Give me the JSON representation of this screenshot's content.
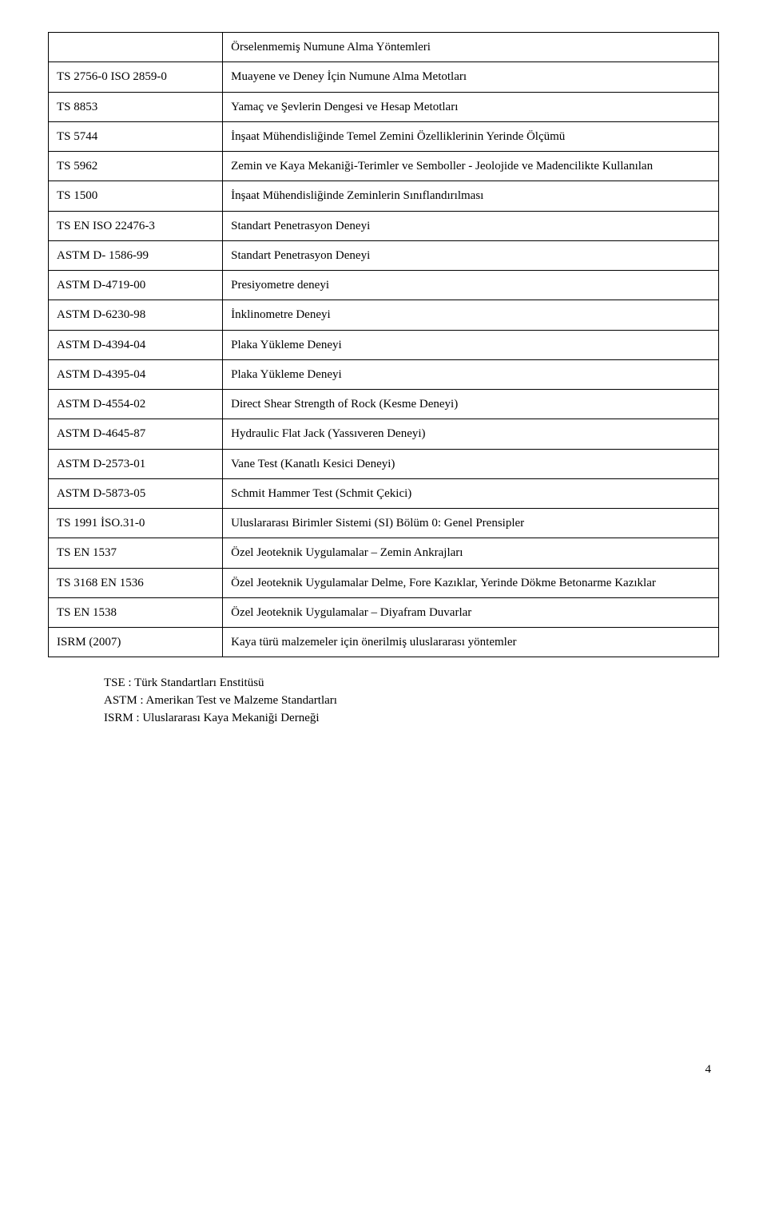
{
  "table": {
    "header": "Örselenmemiş Numune Alma Yöntemleri",
    "rows": [
      {
        "code": "TS 2756-0 ISO 2859-0",
        "desc": "Muayene ve Deney İçin Numune Alma Metotları"
      },
      {
        "code": "TS 8853",
        "desc": "Yamaç ve Şevlerin Dengesi ve Hesap Metotları"
      },
      {
        "code": "TS 5744",
        "desc": "İnşaat Mühendisliğinde Temel Zemini Özelliklerinin Yerinde Ölçümü"
      },
      {
        "code": "TS 5962",
        "desc": "Zemin ve Kaya Mekaniği-Terimler ve Semboller - Jeolojide ve Madencilikte Kullanılan"
      },
      {
        "code": "TS 1500",
        "desc": "İnşaat Mühendisliğinde Zeminlerin Sınıflandırılması"
      },
      {
        "code": "TS EN ISO 22476-3",
        "desc": "Standart Penetrasyon Deneyi"
      },
      {
        "code": "ASTM D- 1586-99",
        "desc": "Standart Penetrasyon Deneyi"
      },
      {
        "code": "ASTM D-4719-00",
        "desc": "Presiyometre deneyi"
      },
      {
        "code": "ASTM D-6230-98",
        "desc": "İnklinometre Deneyi"
      },
      {
        "code": "ASTM D-4394-04",
        "desc": "Plaka Yükleme Deneyi"
      },
      {
        "code": "ASTM D-4395-04",
        "desc": "Plaka Yükleme Deneyi"
      },
      {
        "code": "ASTM D-4554-02",
        "desc": "Direct Shear Strength of Rock (Kesme Deneyi)"
      },
      {
        "code": "ASTM D-4645-87",
        "desc": "Hydraulic Flat Jack (Yassıveren Deneyi)"
      },
      {
        "code": "ASTM D-2573-01",
        "desc": "Vane Test (Kanatlı Kesici Deneyi)"
      },
      {
        "code": "ASTM D-5873-05",
        "desc": "Schmit Hammer Test (Schmit Çekici)"
      },
      {
        "code": "TS 1991 İSO.31-0",
        "desc": "Uluslararası Birimler Sistemi (SI) Bölüm 0: Genel Prensipler"
      },
      {
        "code": "TS EN 1537",
        "desc": "Özel Jeoteknik Uygulamalar – Zemin Ankrajları"
      },
      {
        "code": "TS 3168 EN 1536",
        "desc": "Özel Jeoteknik Uygulamalar Delme, Fore Kazıklar, Yerinde Dökme Betonarme Kazıklar"
      },
      {
        "code": "TS EN 1538",
        "desc": "Özel Jeoteknik Uygulamalar – Diyafram Duvarlar"
      },
      {
        "code": "ISRM (2007)",
        "desc": "Kaya türü malzemeler için önerilmiş uluslararası yöntemler"
      }
    ]
  },
  "legend": {
    "l1": "TSE    : Türk Standartları Enstitüsü",
    "l2": "ASTM : Amerikan Test ve Malzeme Standartları",
    "l3": "ISRM  : Uluslararası Kaya Mekaniği Derneği"
  },
  "page_number": "4"
}
